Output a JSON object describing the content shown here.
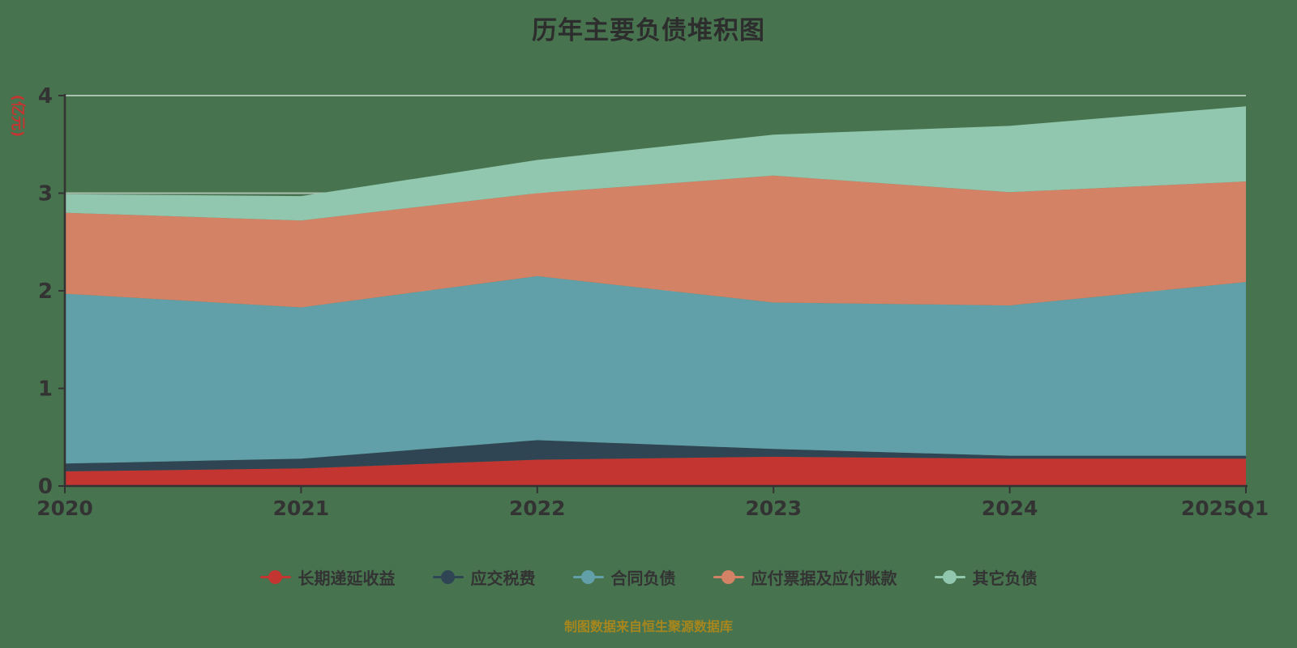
{
  "page": {
    "title": "历年主要负债堆积图",
    "footer": "制图数据来自恒生聚源数据库",
    "background_color": "#48734f",
    "title_color": "#2d2d2d",
    "footer_color": "#a6861d"
  },
  "chart_data": {
    "type": "area",
    "stacked": true,
    "title": "历年主要负债堆积图",
    "y_axis_name": "(亿元)",
    "y_axis_name_color": "#c23531",
    "xlabel": "",
    "ylabel": "(亿元)",
    "ylim": [
      0,
      4
    ],
    "y_ticks": [
      0,
      1,
      2,
      3,
      4
    ],
    "grid": true,
    "legend_position": "bottom",
    "axis_color": "#333333",
    "grid_color": "rgba(255,255,255,0.55)",
    "categories": [
      "2020",
      "2021",
      "2022",
      "2023",
      "2024",
      "2025Q1"
    ],
    "series": [
      {
        "name": "长期递延收益",
        "color": "#c23531",
        "values": [
          0.15,
          0.18,
          0.27,
          0.3,
          0.28,
          0.28
        ]
      },
      {
        "name": "应交税费",
        "color": "#2f4554",
        "values": [
          0.08,
          0.1,
          0.2,
          0.08,
          0.03,
          0.03
        ]
      },
      {
        "name": "合同负债",
        "color": "#61a0a8",
        "values": [
          1.74,
          1.55,
          1.68,
          1.5,
          1.54,
          1.78
        ]
      },
      {
        "name": "应付票据及应付账款",
        "color": "#d48265",
        "values": [
          0.83,
          0.89,
          0.85,
          1.3,
          1.16,
          1.03
        ]
      },
      {
        "name": "其它负债",
        "color": "#91c7ae",
        "values": [
          0.19,
          0.25,
          0.34,
          0.42,
          0.68,
          0.77
        ]
      }
    ]
  }
}
